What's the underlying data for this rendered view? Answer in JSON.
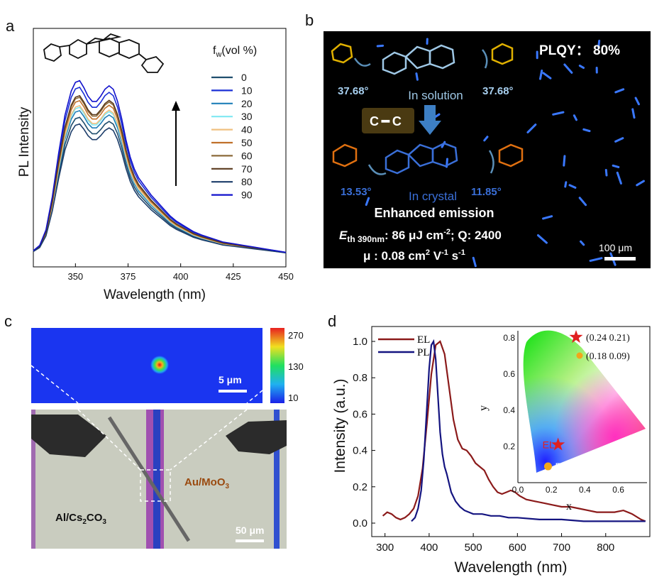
{
  "panel_labels": [
    "a",
    "b",
    "c",
    "d"
  ],
  "chart_data": [
    {
      "panel": "a",
      "type": "line",
      "xlabel": "Wavelength (nm)",
      "ylabel": "PL Intensity",
      "xlim": [
        330,
        450
      ],
      "xticks": [
        350,
        375,
        400,
        425,
        450
      ],
      "legend_title": "f_w(vol  %)",
      "legend_title_main": "f",
      "legend_title_sub": "w",
      "legend_title_rest": "(vol  %)",
      "legend_placement": "top-right",
      "series": [
        {
          "name": "0",
          "color": "#1f4e6e",
          "scale": 0.82
        },
        {
          "name": "10",
          "color": "#1a2fd6",
          "scale": 1.0
        },
        {
          "name": "20",
          "color": "#1f7fb8",
          "scale": 0.86
        },
        {
          "name": "30",
          "color": "#7fe8f2",
          "scale": 0.88
        },
        {
          "name": "40",
          "color": "#f0c080",
          "scale": 0.89
        },
        {
          "name": "50",
          "color": "#c0702a",
          "scale": 0.92
        },
        {
          "name": "60",
          "color": "#8c6a3a",
          "scale": 0.94
        },
        {
          "name": "70",
          "color": "#5a3a1e",
          "scale": 0.95
        },
        {
          "name": "80",
          "color": "#1c3d6a",
          "scale": 0.78
        },
        {
          "name": "90",
          "color": "#1111cc",
          "scale": 1.04
        }
      ],
      "x": [
        330,
        333,
        336,
        339,
        342,
        345,
        348,
        350,
        352,
        354,
        356,
        358,
        360,
        362,
        364,
        366,
        368,
        370,
        372,
        374,
        376,
        378,
        380,
        383,
        386,
        389,
        392,
        395,
        398,
        402,
        406,
        410,
        415,
        420,
        425,
        430,
        435,
        440,
        445,
        450
      ],
      "base_profile": [
        0.02,
        0.05,
        0.14,
        0.33,
        0.58,
        0.8,
        0.94,
        0.99,
        1.0,
        0.96,
        0.91,
        0.88,
        0.88,
        0.91,
        0.95,
        0.97,
        0.95,
        0.88,
        0.78,
        0.66,
        0.56,
        0.49,
        0.44,
        0.39,
        0.34,
        0.3,
        0.26,
        0.22,
        0.19,
        0.16,
        0.13,
        0.11,
        0.09,
        0.07,
        0.06,
        0.05,
        0.04,
        0.03,
        0.02,
        0.01
      ]
    },
    {
      "panel": "d",
      "type": "line",
      "xlabel": "Wavelength (nm)",
      "ylabel": "Intensity (a.u.)",
      "xlim": [
        270,
        900
      ],
      "ylim": [
        -0.05,
        1.1
      ],
      "xticks": [
        300,
        400,
        500,
        600,
        700,
        800
      ],
      "yticks": [
        "0.0",
        "0.2",
        "0.4",
        "0.6",
        "0.8",
        "1.0"
      ],
      "legend_placement": "top-left",
      "series": [
        {
          "name": "EL",
          "color": "#8b1a1a",
          "x": [
            295,
            305,
            315,
            325,
            335,
            345,
            355,
            365,
            375,
            385,
            395,
            405,
            415,
            425,
            435,
            445,
            455,
            465,
            475,
            485,
            495,
            505,
            515,
            525,
            535,
            545,
            555,
            565,
            575,
            585,
            595,
            605,
            620,
            640,
            660,
            680,
            700,
            720,
            740,
            760,
            780,
            800,
            820,
            840,
            860,
            880,
            890
          ],
          "y": [
            0.04,
            0.06,
            0.05,
            0.03,
            0.02,
            0.03,
            0.05,
            0.08,
            0.15,
            0.3,
            0.55,
            0.82,
            0.98,
            1.0,
            0.93,
            0.75,
            0.57,
            0.46,
            0.41,
            0.4,
            0.37,
            0.33,
            0.31,
            0.29,
            0.24,
            0.2,
            0.17,
            0.16,
            0.17,
            0.18,
            0.17,
            0.15,
            0.13,
            0.12,
            0.11,
            0.1,
            0.09,
            0.09,
            0.08,
            0.07,
            0.06,
            0.06,
            0.06,
            0.07,
            0.05,
            0.02,
            0.01
          ]
        },
        {
          "name": "PL",
          "color": "#141480",
          "x": [
            360,
            368,
            375,
            382,
            388,
            394,
            400,
            405,
            410,
            415,
            420,
            425,
            430,
            435,
            440,
            445,
            450,
            460,
            470,
            480,
            490,
            500,
            520,
            540,
            560,
            580,
            600,
            650,
            700,
            750,
            800,
            850,
            890
          ],
          "y": [
            0.01,
            0.03,
            0.08,
            0.18,
            0.35,
            0.6,
            0.85,
            0.98,
            1.0,
            0.9,
            0.7,
            0.5,
            0.38,
            0.31,
            0.27,
            0.22,
            0.17,
            0.12,
            0.09,
            0.07,
            0.06,
            0.05,
            0.05,
            0.04,
            0.04,
            0.03,
            0.03,
            0.02,
            0.02,
            0.01,
            0.01,
            0.01,
            0.01
          ]
        }
      ],
      "inset": {
        "type": "scatter",
        "xlabel": "x",
        "ylabel": "y",
        "xticks": [
          "0.0",
          "0.2",
          "0.4",
          "0.6"
        ],
        "yticks": [
          "0.2",
          "0.4",
          "0.6",
          "0.8"
        ],
        "points": [
          {
            "name": "EL",
            "x": 0.24,
            "y": 0.21,
            "label": "(0.24 0.21)",
            "marker": "star",
            "color": "#e02020"
          },
          {
            "name": "PL",
            "x": 0.18,
            "y": 0.09,
            "label": "(0.18 0.09)",
            "marker": "circle",
            "color": "#f2a61a"
          }
        ]
      }
    }
  ],
  "panel_b": {
    "plqy": "PLQY： 80%",
    "angle_left_solution": "37.68°",
    "angle_right_solution": "37.68°",
    "state_solution": "In solution",
    "bond": "C═C",
    "bond_left": "C",
    "bond_right": "C",
    "angle_left_crystal": "13.53°",
    "angle_right_crystal": "11.85°",
    "state_crystal": "In crystal",
    "enhanced": "Enhanced emission",
    "threshold_e": "E",
    "threshold_sub": "th 390nm",
    "threshold_value": ": 86 μJ cm",
    "threshold_exp": "-2",
    "q_factor": "; Q: 2400",
    "mobility": "μ : 0.08 cm",
    "mobility_exp1": "2",
    "mobility_v": " V",
    "mobility_exp2": "-1",
    "mobility_s": " s",
    "mobility_exp3": "-1",
    "scale_bar": "100 μm"
  },
  "panel_c": {
    "colorbar_ticks": [
      "270",
      "130",
      "10"
    ],
    "scale_top": "5 μm",
    "scale_bottom": "50 μm",
    "left_electrode": "Al/Cs",
    "left_sub": "2",
    "left_rest": "CO",
    "left_sub2": "3",
    "right_electrode": "Au/MoO",
    "right_sub": "3"
  },
  "colors": {
    "panel_b_bg": "#000000",
    "panel_c_map_bg": "#1a35f0",
    "el": "#8b1a1a",
    "pl": "#141480"
  }
}
